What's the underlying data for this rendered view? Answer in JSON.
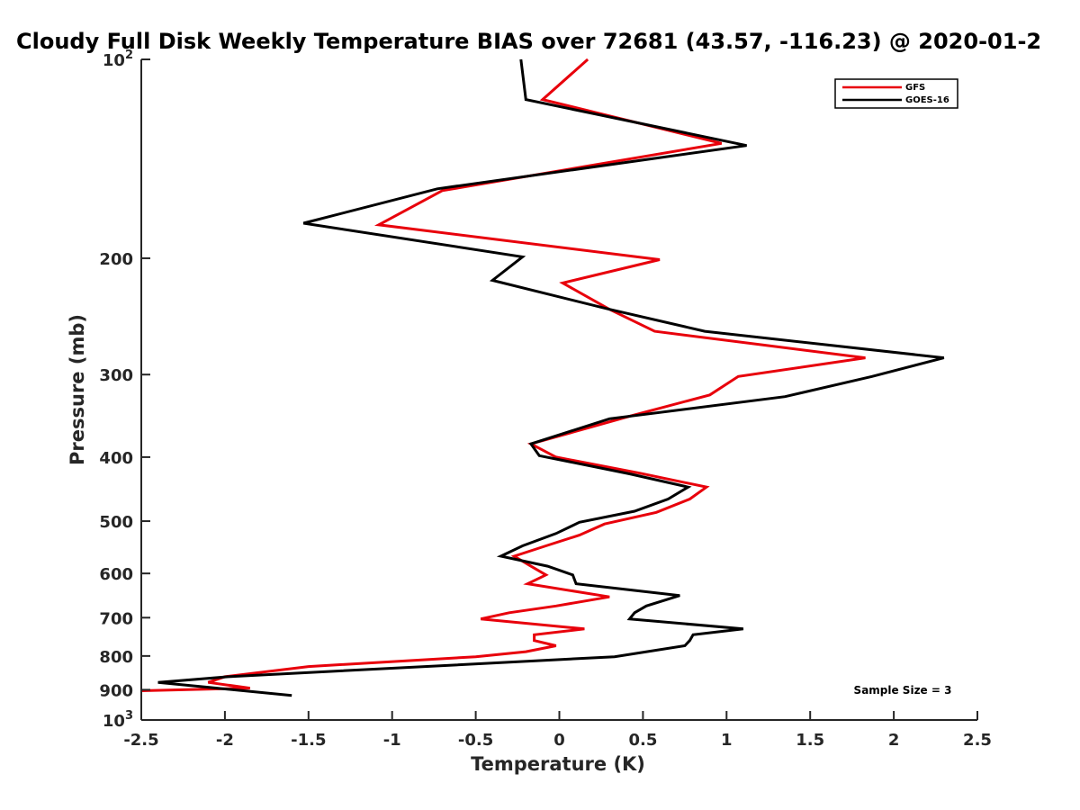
{
  "chart_data": {
    "type": "line",
    "title": "Cloudy Full Disk Weekly Temperature BIAS over 72681 (43.57, -116.23) @ 2020-01-2",
    "xlabel": "Temperature (K)",
    "ylabel": "Pressure (mb)",
    "xlim": [
      -2.5,
      2.5
    ],
    "ylim": [
      100,
      1000
    ],
    "y_scale": "log",
    "y_reversed": true,
    "grid": false,
    "legend_position": "top-right",
    "x_ticks": [
      -2.5,
      -2,
      -1.5,
      -1,
      -0.5,
      0,
      0.5,
      1,
      1.5,
      2,
      2.5
    ],
    "x_tick_labels": [
      "-2.5",
      "-2",
      "-1.5",
      "-1",
      "-0.5",
      "0",
      "0.5",
      "1",
      "1.5",
      "2",
      "2.5"
    ],
    "y_ticks": [
      {
        "value": 100,
        "base": "10",
        "exp": "2"
      },
      {
        "value": 200,
        "label": "200"
      },
      {
        "value": 300,
        "label": "300"
      },
      {
        "value": 400,
        "label": "400"
      },
      {
        "value": 500,
        "label": "500"
      },
      {
        "value": 600,
        "label": "600"
      },
      {
        "value": 700,
        "label": "700"
      },
      {
        "value": 800,
        "label": "800"
      },
      {
        "value": 900,
        "label": "900"
      },
      {
        "value": 1000,
        "base": "10",
        "exp": "3"
      }
    ],
    "annotation": "Sample Size = 3",
    "series": [
      {
        "name": "GFS",
        "color": "#e8000b",
        "points": [
          [
            0.17,
            100
          ],
          [
            -0.1,
            115
          ],
          [
            0.97,
            134
          ],
          [
            -0.7,
            158
          ],
          [
            -1.08,
            178
          ],
          [
            0.6,
            201
          ],
          [
            0.02,
            218
          ],
          [
            0.3,
            239
          ],
          [
            0.57,
            258
          ],
          [
            1.83,
            283
          ],
          [
            1.07,
            302
          ],
          [
            0.9,
            322
          ],
          [
            0.4,
            348
          ],
          [
            0.06,
            368
          ],
          [
            -0.17,
            382
          ],
          [
            -0.02,
            400
          ],
          [
            0.48,
            423
          ],
          [
            0.88,
            444
          ],
          [
            0.78,
            463
          ],
          [
            0.58,
            485
          ],
          [
            0.27,
            505
          ],
          [
            0.12,
            525
          ],
          [
            -0.08,
            545
          ],
          [
            -0.27,
            565
          ],
          [
            -0.17,
            585
          ],
          [
            -0.08,
            603
          ],
          [
            -0.19,
            622
          ],
          [
            0.3,
            651
          ],
          [
            -0.02,
            672
          ],
          [
            -0.3,
            688
          ],
          [
            -0.47,
            703
          ],
          [
            0.15,
            728
          ],
          [
            -0.15,
            743
          ],
          [
            -0.15,
            758
          ],
          [
            -0.02,
            772
          ],
          [
            -0.2,
            788
          ],
          [
            -0.5,
            802
          ],
          [
            -1.5,
            830
          ],
          [
            -2.0,
            860
          ],
          [
            -2.1,
            877
          ],
          [
            -1.85,
            895
          ],
          [
            -2.5,
            903
          ]
        ]
      },
      {
        "name": "GOES-16",
        "color": "#000000",
        "points": [
          [
            -0.23,
            100
          ],
          [
            -0.2,
            115
          ],
          [
            1.12,
            135
          ],
          [
            -0.73,
            157
          ],
          [
            -1.53,
            177
          ],
          [
            -0.22,
            199
          ],
          [
            -0.4,
            216
          ],
          [
            0.3,
            239
          ],
          [
            0.87,
            258
          ],
          [
            2.3,
            283
          ],
          [
            1.87,
            302
          ],
          [
            1.35,
            324
          ],
          [
            0.3,
            350
          ],
          [
            0.03,
            368
          ],
          [
            -0.17,
            382
          ],
          [
            -0.12,
            398
          ],
          [
            0.42,
            424
          ],
          [
            0.77,
            444
          ],
          [
            0.65,
            463
          ],
          [
            0.45,
            483
          ],
          [
            0.12,
            502
          ],
          [
            -0.02,
            522
          ],
          [
            -0.22,
            545
          ],
          [
            -0.35,
            565
          ],
          [
            -0.07,
            585
          ],
          [
            0.08,
            603
          ],
          [
            0.1,
            622
          ],
          [
            0.72,
            648
          ],
          [
            0.52,
            672
          ],
          [
            0.45,
            688
          ],
          [
            0.42,
            703
          ],
          [
            1.1,
            728
          ],
          [
            0.8,
            743
          ],
          [
            0.78,
            758
          ],
          [
            0.75,
            772
          ],
          [
            0.33,
            802
          ],
          [
            -1.98,
            860
          ],
          [
            -2.4,
            877
          ],
          [
            -1.6,
            918
          ]
        ]
      }
    ]
  }
}
